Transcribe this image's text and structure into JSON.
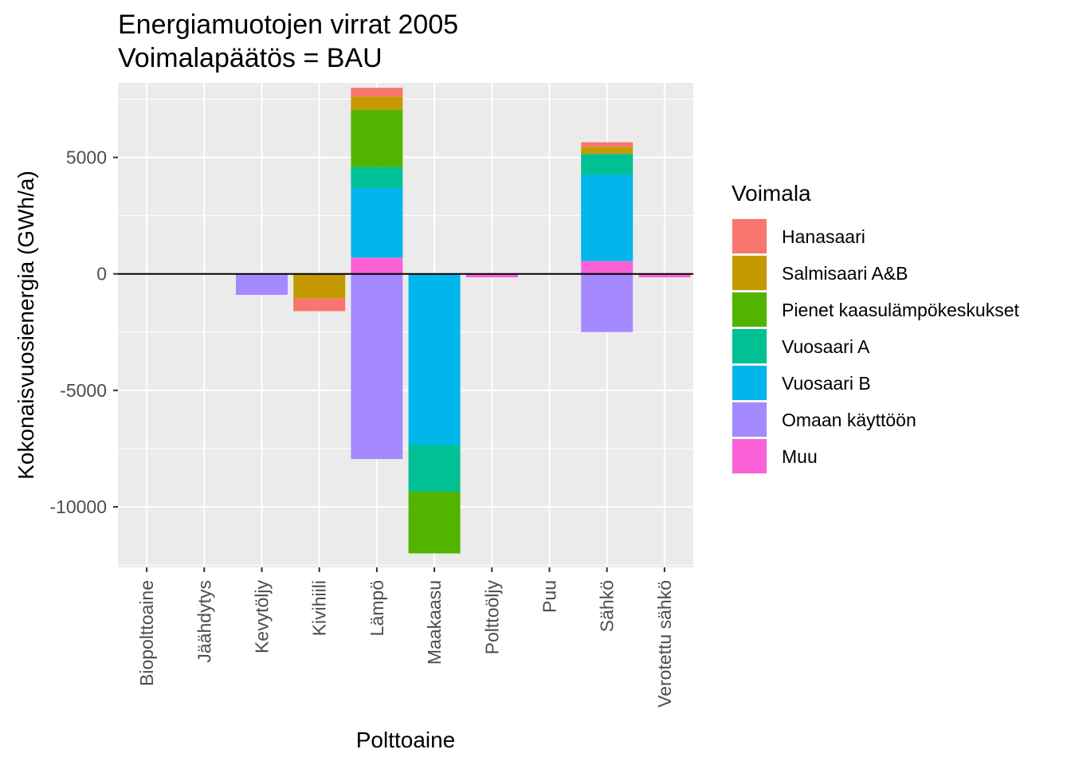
{
  "chart_data": {
    "type": "bar",
    "stacked": true,
    "title": "Energiamuotojen virrat 2005",
    "subtitle": "Voimalapäätös = BAU",
    "xlabel": "Polttoaine",
    "ylabel": "Kokonaisvuosienergia (GWh/a)",
    "ylim": [
      -12600,
      8200
    ],
    "yticks": [
      -10000,
      -5000,
      0,
      5000
    ],
    "ytick_labels": [
      "-10000",
      "-5000",
      "0",
      "5000"
    ],
    "grid": true,
    "zero_line": true,
    "legend_title": "Voimala",
    "legend_position": "right",
    "categories": [
      "Biopolttoaine",
      "Jäähdytys",
      "Kevytöljy",
      "Kivihiili",
      "Lämpö",
      "Maakaasu",
      "Polttoöljy",
      "Puu",
      "Sähkö",
      "Verotettu sähkö"
    ],
    "series": [
      {
        "name": "Hanasaari",
        "color": "#F8766D",
        "values": [
          0,
          0,
          0,
          -550,
          380,
          0,
          0,
          0,
          200,
          0
        ]
      },
      {
        "name": "Salmisaari A&B",
        "color": "#C49A00",
        "values": [
          0,
          0,
          0,
          -1050,
          560,
          0,
          0,
          0,
          300,
          0
        ]
      },
      {
        "name": "Pienet kaasulämpökeskukset",
        "color": "#53B400",
        "values": [
          0,
          0,
          0,
          0,
          2450,
          -2650,
          0,
          0,
          0,
          0
        ]
      },
      {
        "name": "Vuosaari A",
        "color": "#00C094",
        "values": [
          0,
          0,
          0,
          0,
          900,
          -2000,
          0,
          0,
          900,
          0
        ]
      },
      {
        "name": "Vuosaari B",
        "color": "#00B6EB",
        "values": [
          0,
          0,
          0,
          0,
          3000,
          -7350,
          0,
          0,
          3700,
          0
        ]
      },
      {
        "name": "Omaan käyttöön",
        "color": "#A58AFF",
        "values": [
          0,
          0,
          -900,
          0,
          -7950,
          0,
          0,
          0,
          -2500,
          0
        ]
      },
      {
        "name": "Muu",
        "color": "#FB61D7",
        "values": [
          0,
          0,
          0,
          0,
          700,
          0,
          -150,
          0,
          550,
          -150
        ]
      }
    ]
  }
}
